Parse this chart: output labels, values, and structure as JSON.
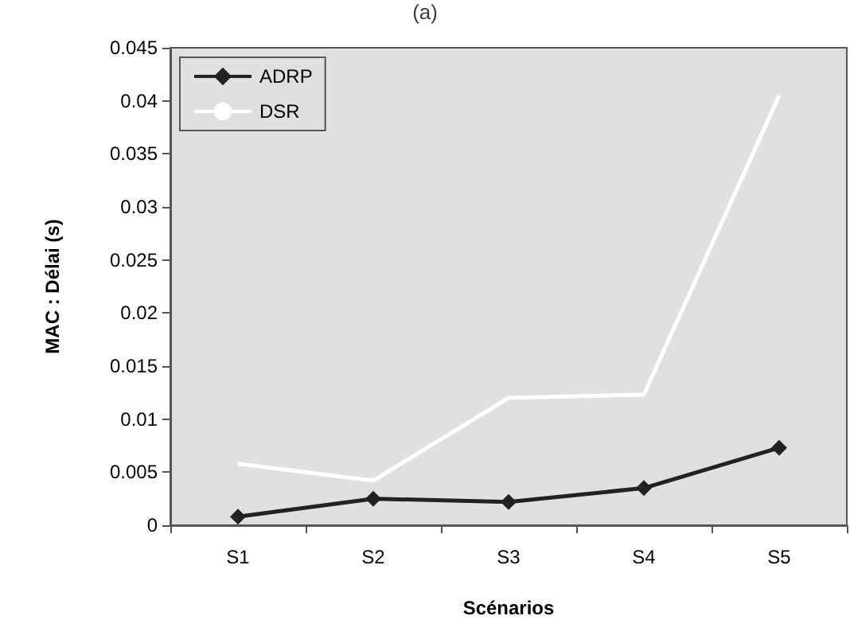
{
  "chart_data": {
    "type": "line",
    "title": "(a)",
    "xlabel": "Scénarios",
    "ylabel": "MAC : Délai (s)",
    "categories": [
      "S1",
      "S2",
      "S3",
      "S4",
      "S5"
    ],
    "series": [
      {
        "name": "ADRP",
        "color": "#222222",
        "marker": "diamond",
        "values": [
          0.0008,
          0.0025,
          0.0022,
          0.0035,
          0.0073
        ]
      },
      {
        "name": "DSR",
        "color": "#ffffff",
        "marker": "none",
        "values": [
          0.0058,
          0.0042,
          0.012,
          0.0123,
          0.0405
        ]
      }
    ],
    "ylim": [
      0,
      0.045
    ],
    "yticks": [
      0,
      0.005,
      0.01,
      0.015,
      0.02,
      0.025,
      0.03,
      0.035,
      0.04,
      0.045
    ],
    "grid": false,
    "legend": "top left",
    "line_style": "solid"
  }
}
